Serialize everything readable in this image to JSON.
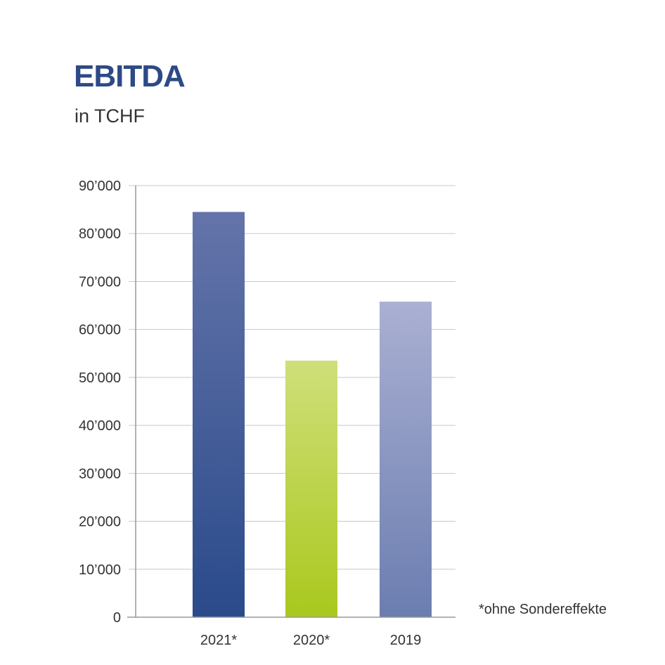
{
  "chart_data": {
    "type": "bar",
    "title": "EBITDA",
    "subtitle": "in TCHF",
    "categories": [
      "2021*",
      "2020*",
      "2019"
    ],
    "values": [
      84500,
      53500,
      65800
    ],
    "ylim": [
      0,
      90000
    ],
    "yticks": [
      0,
      10000,
      20000,
      30000,
      40000,
      50000,
      60000,
      70000,
      80000,
      90000
    ],
    "ytick_labels": [
      "0",
      "10’000",
      "20’000",
      "30’000",
      "40’000",
      "50’000",
      "60’000",
      "70’000",
      "80’000",
      "90’000"
    ],
    "grid": true,
    "legend": "none",
    "annotation": "*ohne Sondereffekte",
    "colors": [
      {
        "top": "#6474aa",
        "bottom": "#2a4a8a"
      },
      {
        "top": "#cfdf7a",
        "bottom": "#a9c81d"
      },
      {
        "top": "#aab0d2",
        "bottom": "#6b7db0"
      }
    ]
  }
}
